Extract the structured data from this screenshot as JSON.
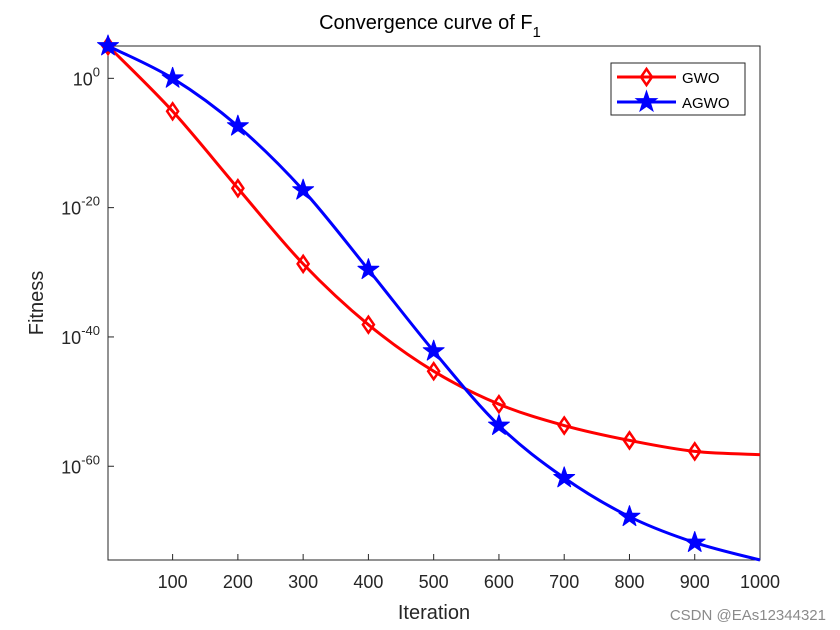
{
  "chart_data": {
    "type": "line",
    "title": "Convergence curve of F",
    "title_subscript": "1",
    "xlabel": "Iteration",
    "ylabel": "Fitness",
    "xlim": [
      1,
      1000
    ],
    "ylim_log10": [
      -74.5,
      5
    ],
    "yscale": "log",
    "grid": false,
    "legend_position": "top-right",
    "x_ticks": [
      100,
      200,
      300,
      400,
      500,
      600,
      700,
      800,
      900,
      1000
    ],
    "y_ticks": [
      {
        "base": "10",
        "exp": "0",
        "log10": 0
      },
      {
        "base": "10",
        "exp": "-20",
        "log10": -20
      },
      {
        "base": "10",
        "exp": "-40",
        "log10": -40
      },
      {
        "base": "10",
        "exp": "-60",
        "log10": -60
      }
    ],
    "series": [
      {
        "name": "GWO",
        "color": "#ff0000",
        "marker": "diamond",
        "x": [
          1,
          100,
          200,
          300,
          400,
          500,
          600,
          700,
          800,
          900,
          1000
        ],
        "log10_y": [
          5,
          -5.1,
          -17,
          -28.7,
          -38.1,
          -45.3,
          -50.4,
          -53.7,
          -56,
          -57.7,
          -58.2
        ]
      },
      {
        "name": "AGWO",
        "color": "#0000ff",
        "marker": "star",
        "x": [
          1,
          100,
          200,
          300,
          400,
          500,
          600,
          700,
          800,
          900,
          1000
        ],
        "log10_y": [
          5,
          0,
          -7.4,
          -17.3,
          -29.6,
          -42.2,
          -53.7,
          -61.8,
          -67.8,
          -71.8,
          -74.5
        ]
      }
    ]
  },
  "watermark": "CSDN @EAs12344321"
}
